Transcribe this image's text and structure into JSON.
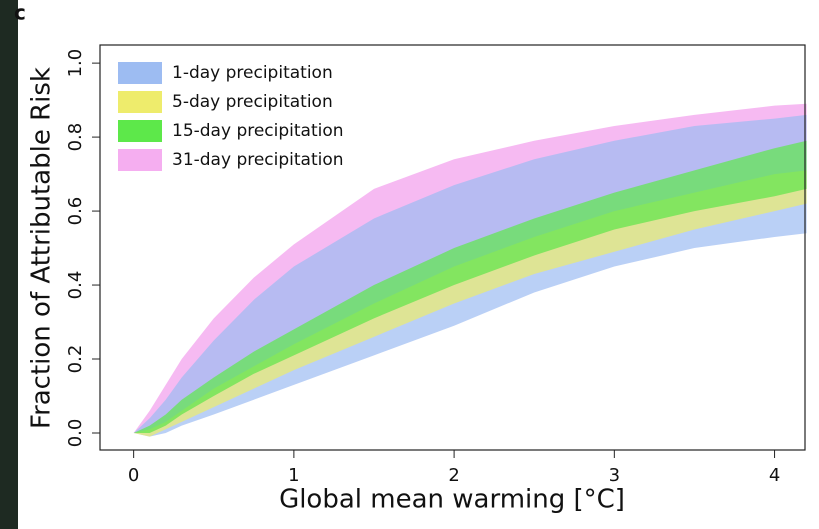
{
  "chart_data": {
    "type": "band",
    "panel_label": "c",
    "xlabel": "Global mean warming [°C]",
    "ylabel": "Fraction of Attributable Risk",
    "x": [
      0,
      0.1,
      0.2,
      0.3,
      0.5,
      0.75,
      1,
      1.5,
      2,
      2.5,
      3,
      3.5,
      4,
      4.2
    ],
    "xlim": [
      -0.21,
      4.19
    ],
    "ylim": [
      -0.046,
      1.049
    ],
    "xticks": [
      0,
      1,
      2,
      3,
      4
    ],
    "yticks": [
      {
        "value": 0,
        "label": "0.0"
      },
      0.2,
      0.4,
      0.6,
      0.8,
      {
        "value": 1,
        "label": "1.0"
      }
    ],
    "legend": "top-left",
    "series": [
      {
        "name": "31-day precipitation",
        "color": "#f5aef0",
        "lower": [
          0,
          0,
          0.02,
          0.05,
          0.1,
          0.16,
          0.21,
          0.31,
          0.4,
          0.48,
          0.55,
          0.6,
          0.64,
          0.66
        ],
        "upper": [
          0,
          0.06,
          0.13,
          0.2,
          0.31,
          0.42,
          0.51,
          0.66,
          0.74,
          0.79,
          0.83,
          0.86,
          0.885,
          0.89
        ]
      },
      {
        "name": "1-day precipitation",
        "color": "#9dbcf2",
        "lower": [
          0,
          -0.01,
          0,
          0.02,
          0.05,
          0.09,
          0.13,
          0.21,
          0.29,
          0.38,
          0.45,
          0.5,
          0.53,
          0.54
        ],
        "upper": [
          0,
          0.04,
          0.09,
          0.15,
          0.25,
          0.36,
          0.45,
          0.58,
          0.67,
          0.74,
          0.79,
          0.83,
          0.85,
          0.86
        ]
      },
      {
        "name": "5-day precipitation",
        "color": "#eeec6c",
        "lower": [
          0,
          -0.01,
          0.01,
          0.03,
          0.07,
          0.12,
          0.17,
          0.26,
          0.35,
          0.43,
          0.49,
          0.55,
          0.6,
          0.62
        ],
        "upper": [
          0,
          0.01,
          0.03,
          0.06,
          0.12,
          0.18,
          0.24,
          0.35,
          0.45,
          0.53,
          0.6,
          0.65,
          0.7,
          0.71
        ]
      },
      {
        "name": "15-day precipitation",
        "color": "#5de84a",
        "lower": [
          0,
          0,
          0.02,
          0.05,
          0.1,
          0.16,
          0.21,
          0.31,
          0.4,
          0.48,
          0.55,
          0.6,
          0.64,
          0.66
        ],
        "upper": [
          0,
          0.02,
          0.05,
          0.09,
          0.15,
          0.22,
          0.28,
          0.4,
          0.5,
          0.58,
          0.65,
          0.71,
          0.77,
          0.79
        ]
      }
    ],
    "legend_order": [
      1,
      2,
      3,
      0
    ]
  }
}
